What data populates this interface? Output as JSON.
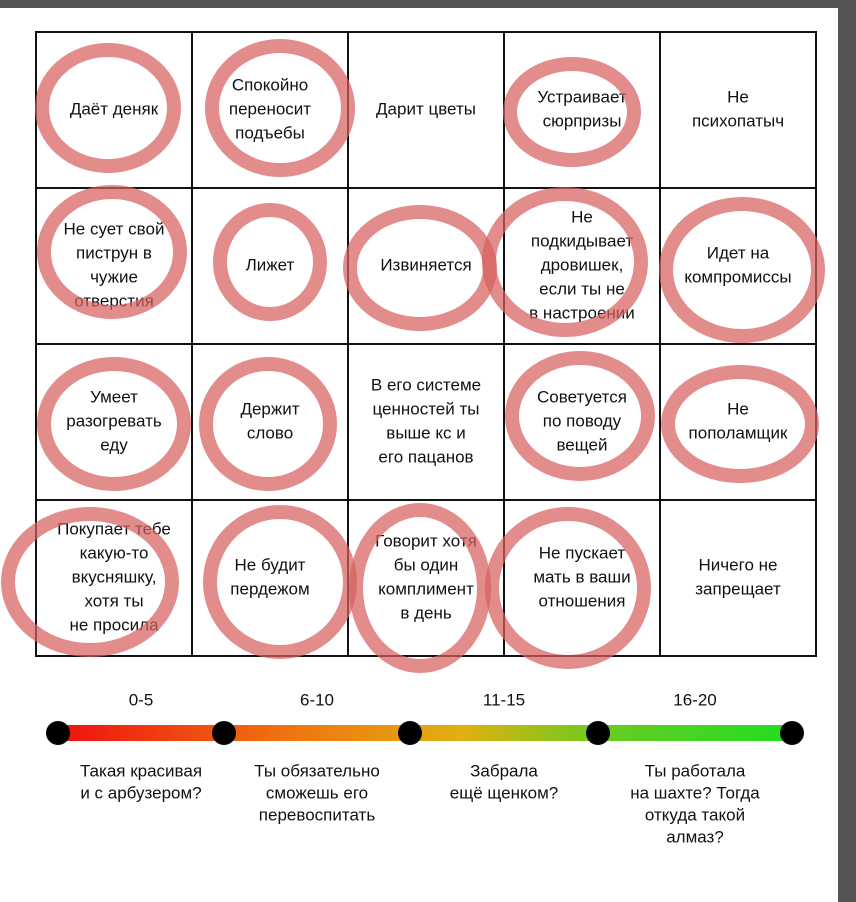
{
  "bingo": {
    "cells": [
      [
        [
          "Даёт деняк"
        ],
        [
          "Спокойно",
          "переносит",
          "подъебы"
        ],
        [
          "Дарит цветы"
        ],
        [
          "Устраивает",
          "сюрпризы"
        ],
        [
          "Не",
          "психопатыч"
        ]
      ],
      [
        [
          "Не сует свой",
          "пиструн в",
          "чужие",
          "отверстия"
        ],
        [
          "Лижет"
        ],
        [
          "Извиняется"
        ],
        [
          "Не",
          "подкидывает",
          "дровишек,",
          "если ты не",
          "в настроении"
        ],
        [
          "Идет на",
          "компромиссы"
        ]
      ],
      [
        [
          "Умеет",
          "разогревать",
          "еду"
        ],
        [
          "Держит",
          "слово"
        ],
        [
          "В его системе",
          "ценностей ты",
          "выше кс и",
          "его пацанов"
        ],
        [
          "Советуется",
          "по поводу",
          "вещей"
        ],
        [
          "Не",
          "пополамщик"
        ]
      ],
      [
        [
          "Покупает тебе",
          "какую-то",
          "вкусняшку,",
          "хотя ты",
          "не просила"
        ],
        [
          "Не будит",
          "пердежом"
        ],
        [
          "Говорит хотя",
          "бы один",
          "комплимент",
          "в день"
        ],
        [
          "Не пускает",
          "мать в ваши",
          "отношения"
        ],
        [
          "Ничего не",
          "запрещает"
        ]
      ]
    ],
    "scale": {
      "ranges": [
        "0-5",
        "6-10",
        "11-15",
        "16-20"
      ],
      "descriptions": [
        [
          "Такая красивая",
          "и с арбузером?"
        ],
        [
          "Ты обязательно",
          "сможешь его",
          "перевоспитать"
        ],
        [
          "Забрала",
          "ещё щенком?"
        ],
        [
          "Ты работала",
          "на шахте? Тогда",
          "откуда такой",
          "алмаз?"
        ]
      ]
    }
  }
}
